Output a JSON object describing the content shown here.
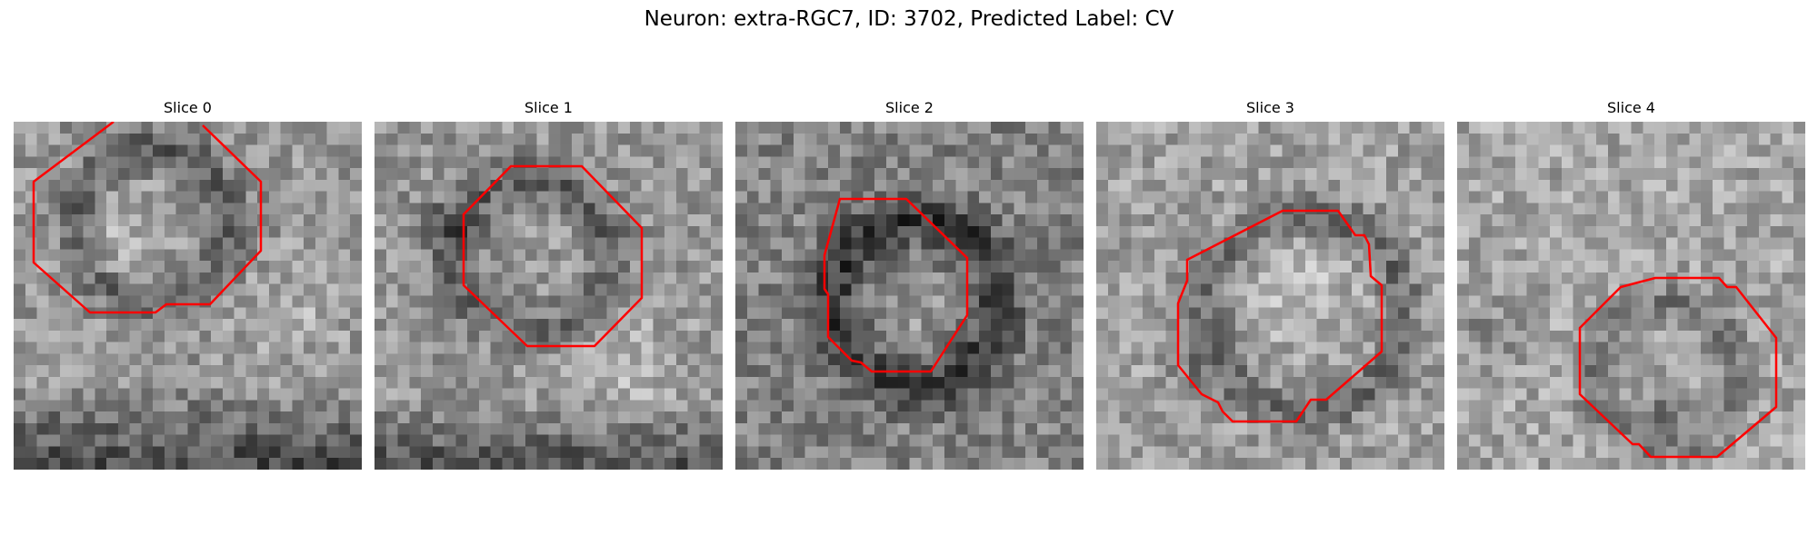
{
  "figure": {
    "title": "Neuron: extra-RGC7, ID: 3702, Predicted Label: CV"
  },
  "image_grid": {
    "cols": 30,
    "rows": 30,
    "colormap": "gray",
    "contour_color": "#ff0000"
  },
  "panels": [
    {
      "title": "Slice 0"
    },
    {
      "title": "Slice 1"
    },
    {
      "title": "Slice 2"
    },
    {
      "title": "Slice 3"
    },
    {
      "title": "Slice 4"
    }
  ]
}
